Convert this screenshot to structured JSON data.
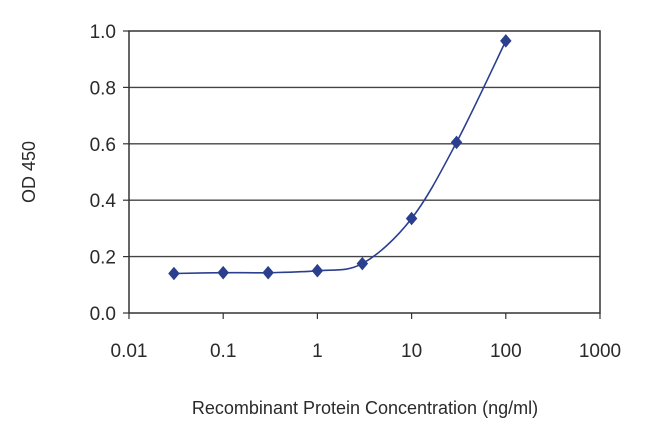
{
  "chart_data": {
    "type": "line",
    "title": "",
    "xlabel": "Recombinant Protein Concentration (ng/ml)",
    "ylabel": "OD 450",
    "x_scale": "log",
    "xlim": [
      0.01,
      1000
    ],
    "ylim": [
      0.0,
      1.0
    ],
    "x_ticks": [
      "0.01",
      "0.1",
      "1",
      "10",
      "100",
      "1000"
    ],
    "y_ticks": [
      "0.0",
      "0.2",
      "0.4",
      "0.6",
      "0.8",
      "1.0"
    ],
    "grid": "horizontal",
    "legend": "none",
    "series": [
      {
        "color": "#2b3f8f",
        "marker": "diamond",
        "x": [
          0.03,
          0.1,
          0.3,
          1,
          3,
          10,
          30,
          100
        ],
        "y": [
          0.14,
          0.143,
          0.143,
          0.15,
          0.175,
          0.335,
          0.605,
          0.965
        ]
      }
    ]
  }
}
